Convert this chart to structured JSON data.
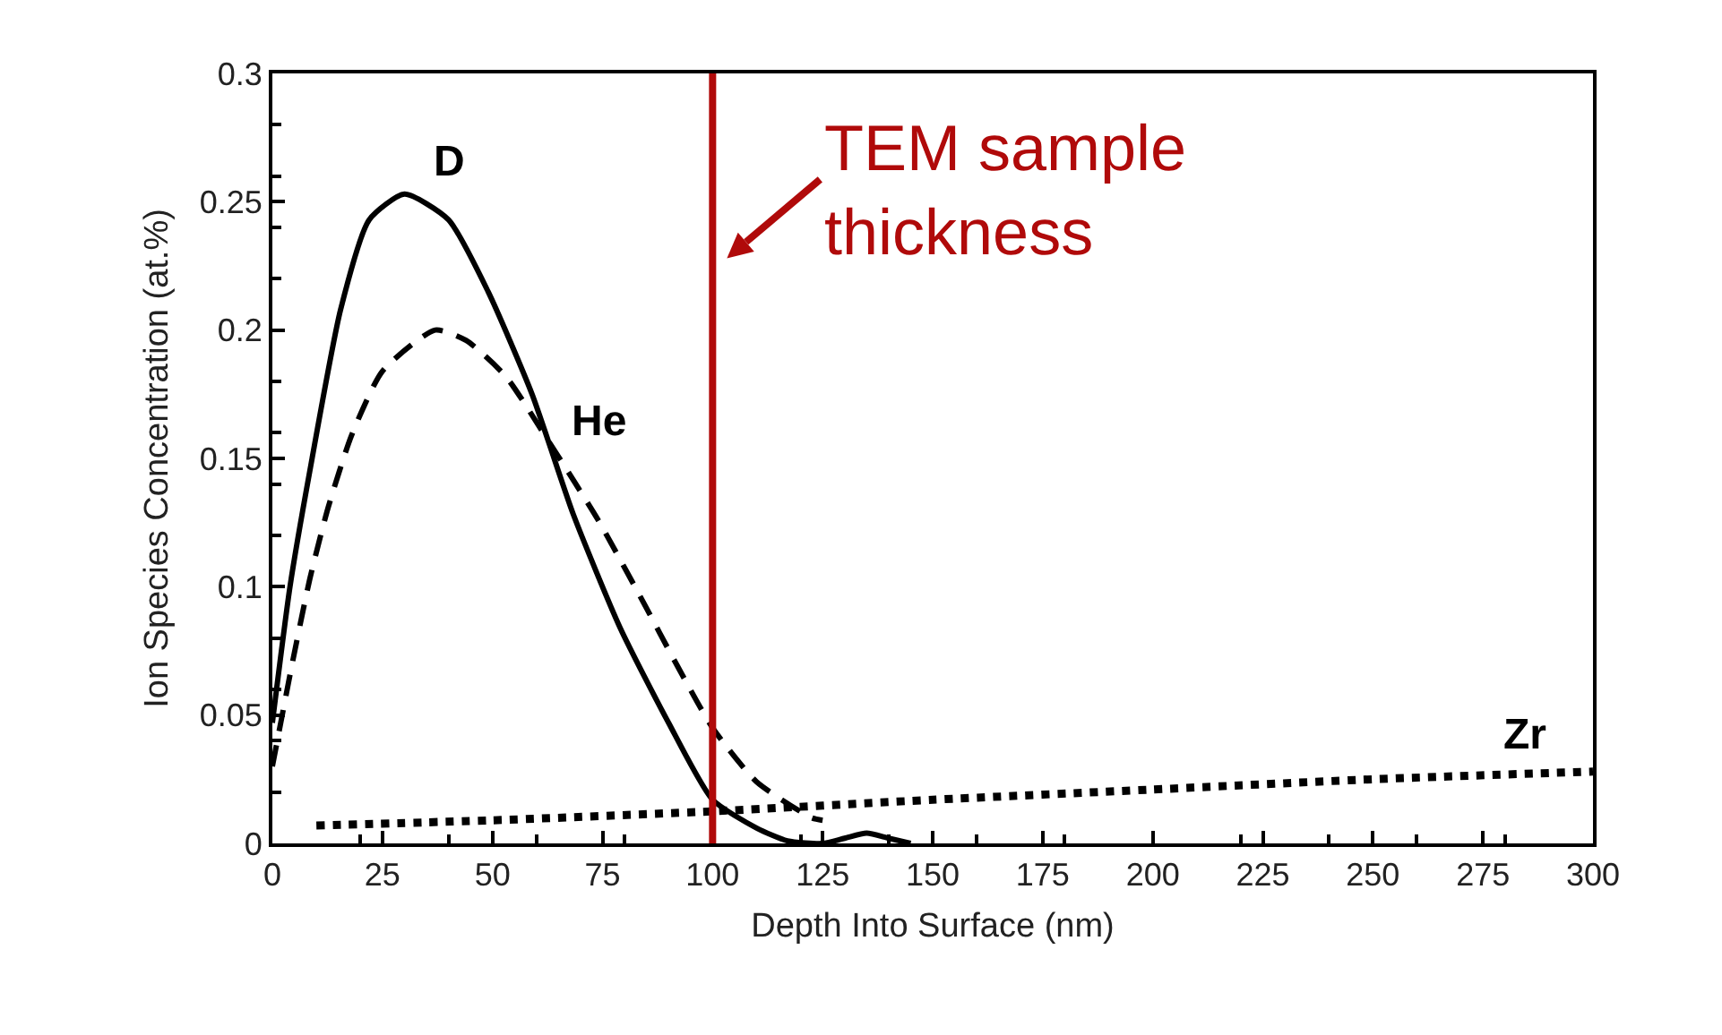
{
  "chart_data": {
    "type": "line",
    "xlabel": "Depth Into Surface (nm)",
    "ylabel": "Ion Species Concentration (at.%)",
    "xlim": [
      0,
      300
    ],
    "xticks": [
      0,
      25,
      50,
      75,
      100,
      125,
      150,
      175,
      200,
      225,
      250,
      275,
      300
    ],
    "ylim": [
      0,
      0.3
    ],
    "yticks": [
      0,
      0.05,
      0.1,
      0.15,
      0.2,
      0.25,
      0.3
    ],
    "grid": false,
    "legend": false,
    "marker": "none",
    "series": [
      {
        "name": "D",
        "color": "#000000",
        "line_style": "solid",
        "x": [
          0,
          4,
          8.5,
          15.5,
          22,
          30,
          40,
          49,
          59,
          68.4,
          79,
          90,
          100,
          110,
          117,
          125,
          130,
          135,
          140,
          145
        ],
        "values": [
          0.047,
          0.1,
          0.145,
          0.208,
          0.243,
          0.253,
          0.243,
          0.215,
          0.175,
          0.128,
          0.084,
          0.047,
          0.017,
          0.006,
          0.001,
          0.0,
          0.002,
          0.004,
          0.002,
          0.0
        ]
      },
      {
        "name": "He",
        "color": "#000000",
        "line_style": "dashed",
        "x": [
          0,
          4.5,
          8.5,
          12.7,
          18,
          25,
          37,
          44,
          53,
          63,
          74,
          83,
          93,
          100,
          110,
          122.5,
          125
        ],
        "values": [
          0.03,
          0.07,
          0.103,
          0.131,
          0.159,
          0.184,
          0.2,
          0.196,
          0.182,
          0.156,
          0.126,
          0.098,
          0.066,
          0.045,
          0.024,
          0.01,
          0.009
        ]
      },
      {
        "name": "Zr",
        "color": "#000000",
        "line_style": "dotted",
        "x": [
          10,
          50,
          100,
          150,
          200,
          250,
          300
        ],
        "values": [
          0.007,
          0.009,
          0.0125,
          0.017,
          0.021,
          0.025,
          0.028
        ]
      }
    ],
    "ref_lines": [
      {
        "axis": "x",
        "value": 100,
        "label": "TEM sample thickness",
        "color": "#b00a0a",
        "line_style": "solid"
      }
    ]
  }
}
